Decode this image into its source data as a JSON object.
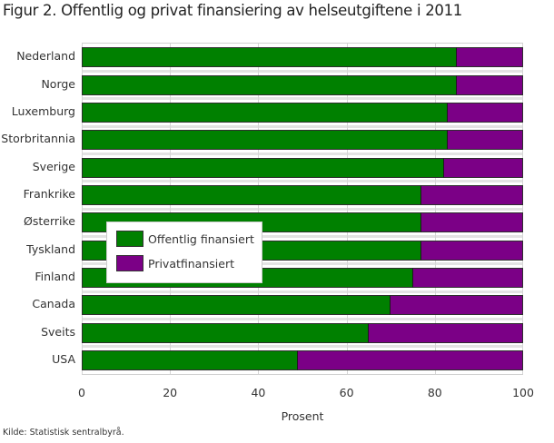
{
  "title": "Figur 2. Offentlig og privat finansiering av helseutgiftene i 2011",
  "source": "Kilde: Statistisk sentralbyrå.",
  "colors": {
    "public": "#008000",
    "private": "#7b0086"
  },
  "legend": {
    "public_label": "Offentlig finansiert",
    "private_label": "Privatfinansiert"
  },
  "axis": {
    "xlabel": "Prosent",
    "ticks": [
      "0",
      "20",
      "40",
      "60",
      "80",
      "100"
    ]
  },
  "chart_data": {
    "type": "bar",
    "orientation": "horizontal",
    "stacked": true,
    "title": "Figur 2. Offentlig og privat finansiering av helseutgiftene i 2011",
    "xlabel": "Prosent",
    "ylabel": "",
    "xlim": [
      0,
      100
    ],
    "xticks": [
      0,
      20,
      40,
      60,
      80,
      100
    ],
    "grid": true,
    "legend_position": "inside-left-center",
    "categories": [
      "Nederland",
      "Norge",
      "Luxemburg",
      "Storbritannia",
      "Sverige",
      "Frankrike",
      "Østerrike",
      "Tyskland",
      "Finland",
      "Canada",
      "Sveits",
      "USA"
    ],
    "series": [
      {
        "name": "Offentlig finansiert",
        "color": "#008000",
        "values": [
          85,
          85,
          83,
          83,
          82,
          77,
          77,
          77,
          75,
          70,
          65,
          49
        ]
      },
      {
        "name": "Privatfinansiert",
        "color": "#7b0086",
        "values": [
          15,
          15,
          17,
          17,
          18,
          23,
          23,
          23,
          25,
          30,
          35,
          51
        ]
      }
    ],
    "source": "Kilde: Statistisk sentralbyrå."
  }
}
